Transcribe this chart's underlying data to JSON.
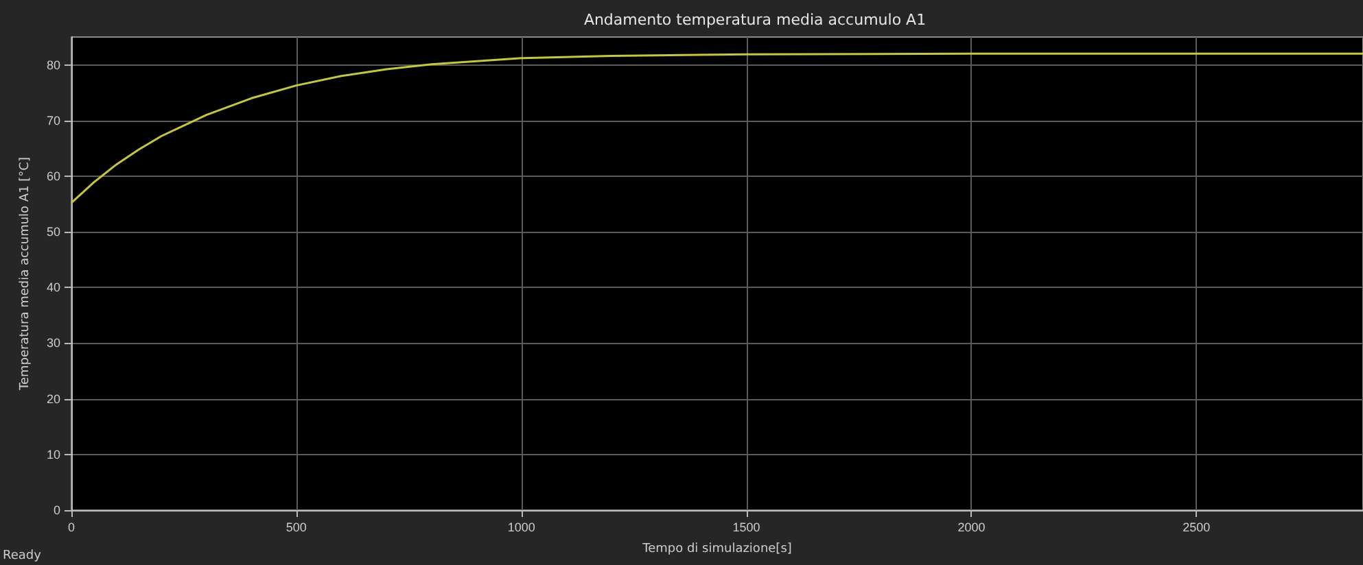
{
  "chart_data": {
    "type": "line",
    "title": "Andamento temperatura media accumulo A1",
    "xlabel": "Tempo di simulazione[s]",
    "ylabel": "Temperatura media accumulo A1 [°C]",
    "x": [
      0,
      50,
      100,
      150,
      200,
      300,
      400,
      500,
      600,
      700,
      800,
      1000,
      1200,
      1500,
      2000,
      2500,
      2870
    ],
    "series": [
      {
        "color": "#c8c832",
        "values": [
          55.2,
          58.9,
          62.1,
          64.8,
          67.2,
          71.0,
          74.0,
          76.3,
          78.0,
          79.2,
          80.1,
          81.2,
          81.6,
          81.9,
          82.0,
          82.0,
          82.0
        ]
      }
    ],
    "xlim": [
      0,
      2870
    ],
    "xticks": [
      0,
      500,
      1000,
      1500,
      2000,
      2500
    ],
    "ylim": [
      0,
      85
    ],
    "yticks": [
      0,
      10,
      20,
      30,
      40,
      50,
      60,
      70,
      80
    ],
    "grid": true,
    "marker": "none",
    "line_style": "solid",
    "annotations": [
      "Ready"
    ]
  }
}
